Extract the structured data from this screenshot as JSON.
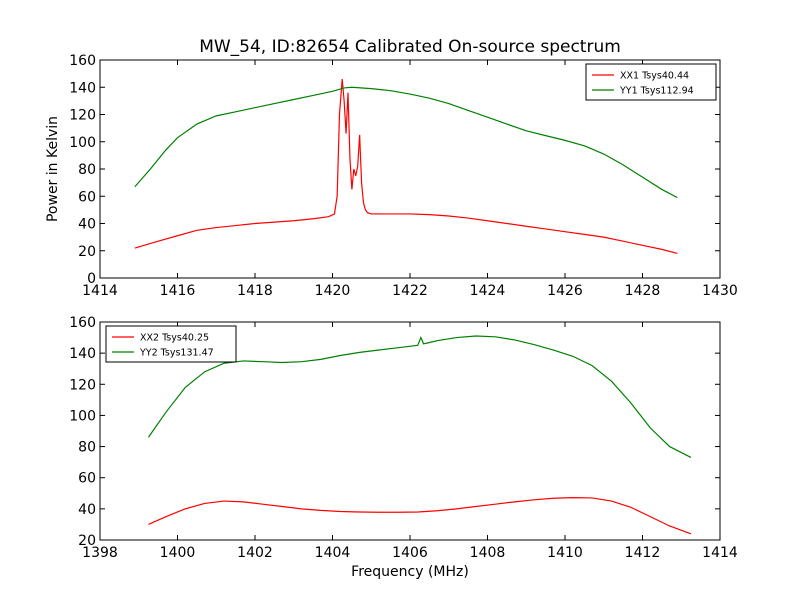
{
  "title": "MW_54, ID:82654 Calibrated On-source spectrum",
  "chart_data": [
    {
      "type": "line",
      "title": "MW_54, ID:82654 Calibrated On-source spectrum",
      "xlabel": "",
      "ylabel": "Power in Kelvin",
      "xlim": [
        1414,
        1430
      ],
      "ylim": [
        0,
        160
      ],
      "xticks": [
        1414,
        1416,
        1418,
        1420,
        1422,
        1424,
        1426,
        1428,
        1430
      ],
      "yticks": [
        0,
        20,
        40,
        60,
        80,
        100,
        120,
        140,
        160
      ],
      "legend": "top-right",
      "grid": false,
      "series": [
        {
          "name": "XX1 Tsys40.44",
          "color": "#ff0000",
          "x": [
            1414.9,
            1415.5,
            1416,
            1416.5,
            1417,
            1417.5,
            1418,
            1418.5,
            1419,
            1419.5,
            1419.9,
            1420.05,
            1420.12,
            1420.18,
            1420.25,
            1420.3,
            1420.35,
            1420.4,
            1420.45,
            1420.5,
            1420.55,
            1420.6,
            1420.65,
            1420.7,
            1420.75,
            1420.8,
            1420.85,
            1420.9,
            1421,
            1421.5,
            1422,
            1422.5,
            1423,
            1423.5,
            1424,
            1424.5,
            1425,
            1425.5,
            1426,
            1426.5,
            1427,
            1427.5,
            1428,
            1428.5,
            1428.9
          ],
          "y": [
            22,
            27,
            31,
            35,
            37,
            38.5,
            40,
            41,
            42,
            43.5,
            45,
            47,
            60,
            120,
            146,
            130,
            106,
            136,
            88,
            65,
            80,
            75,
            82,
            105,
            70,
            55,
            50,
            48,
            47,
            47,
            47,
            46.5,
            45.5,
            44,
            42,
            40,
            38,
            36,
            34,
            32,
            30,
            27,
            24,
            21,
            18
          ]
        },
        {
          "name": "YY1 Tsys112.94",
          "color": "#008000",
          "x": [
            1414.9,
            1415.3,
            1415.7,
            1416,
            1416.5,
            1417,
            1417.5,
            1418,
            1418.5,
            1419,
            1419.5,
            1420,
            1420.3,
            1420.5,
            1421,
            1421.5,
            1422,
            1422.5,
            1423,
            1423.5,
            1424,
            1424.5,
            1425,
            1425.5,
            1426,
            1426.5,
            1427,
            1427.5,
            1428,
            1428.5,
            1428.9
          ],
          "y": [
            67,
            80,
            94,
            103,
            113,
            119,
            122,
            125,
            128,
            131,
            134,
            137,
            139.5,
            140,
            139,
            137.5,
            135,
            132,
            128,
            123,
            118,
            113,
            108,
            104.5,
            101,
            97,
            91,
            83,
            74,
            65,
            59
          ]
        }
      ]
    },
    {
      "type": "line",
      "title": "",
      "xlabel": "Frequency (MHz)",
      "ylabel": "",
      "xlim": [
        1398,
        1414
      ],
      "ylim": [
        20,
        160
      ],
      "xticks": [
        1398,
        1400,
        1402,
        1404,
        1406,
        1408,
        1410,
        1412,
        1414
      ],
      "yticks": [
        20,
        40,
        60,
        80,
        100,
        120,
        140,
        160
      ],
      "legend": "top-left",
      "grid": false,
      "series": [
        {
          "name": "XX2 Tsys40.25",
          "color": "#ff0000",
          "x": [
            1399.25,
            1399.7,
            1400.2,
            1400.7,
            1401.2,
            1401.7,
            1402.2,
            1402.7,
            1403.2,
            1403.7,
            1404.2,
            1404.7,
            1405.2,
            1405.7,
            1406.2,
            1406.7,
            1407.2,
            1407.7,
            1408.2,
            1408.7,
            1409.2,
            1409.7,
            1410.2,
            1410.7,
            1411.2,
            1411.7,
            1412.2,
            1412.7,
            1413.25
          ],
          "y": [
            30,
            35,
            40,
            43.5,
            45,
            44.5,
            43,
            41.5,
            40,
            39,
            38.3,
            38,
            37.8,
            37.8,
            38,
            38.8,
            40,
            41.5,
            43,
            44.5,
            45.8,
            46.8,
            47.2,
            47,
            45,
            41,
            35,
            29,
            24
          ]
        },
        {
          "name": "YY2 Tsys131.47",
          "color": "#008000",
          "x": [
            1399.25,
            1399.7,
            1400.2,
            1400.7,
            1401.2,
            1401.7,
            1402.2,
            1402.7,
            1403.2,
            1403.7,
            1404.2,
            1404.7,
            1405.2,
            1405.7,
            1406.2,
            1406.28,
            1406.35,
            1406.45,
            1406.7,
            1407.2,
            1407.7,
            1408.2,
            1408.7,
            1409.2,
            1409.7,
            1410.2,
            1410.7,
            1411.2,
            1411.7,
            1412.2,
            1412.7,
            1413.25
          ],
          "y": [
            86,
            102,
            118,
            128,
            133.5,
            135,
            134.5,
            134,
            134.5,
            136,
            138.5,
            140.5,
            142,
            143.5,
            145,
            150,
            146,
            146.5,
            148,
            150,
            151,
            150.5,
            148.5,
            145.5,
            142,
            138,
            132,
            122,
            108,
            92,
            80,
            73
          ]
        }
      ]
    }
  ]
}
